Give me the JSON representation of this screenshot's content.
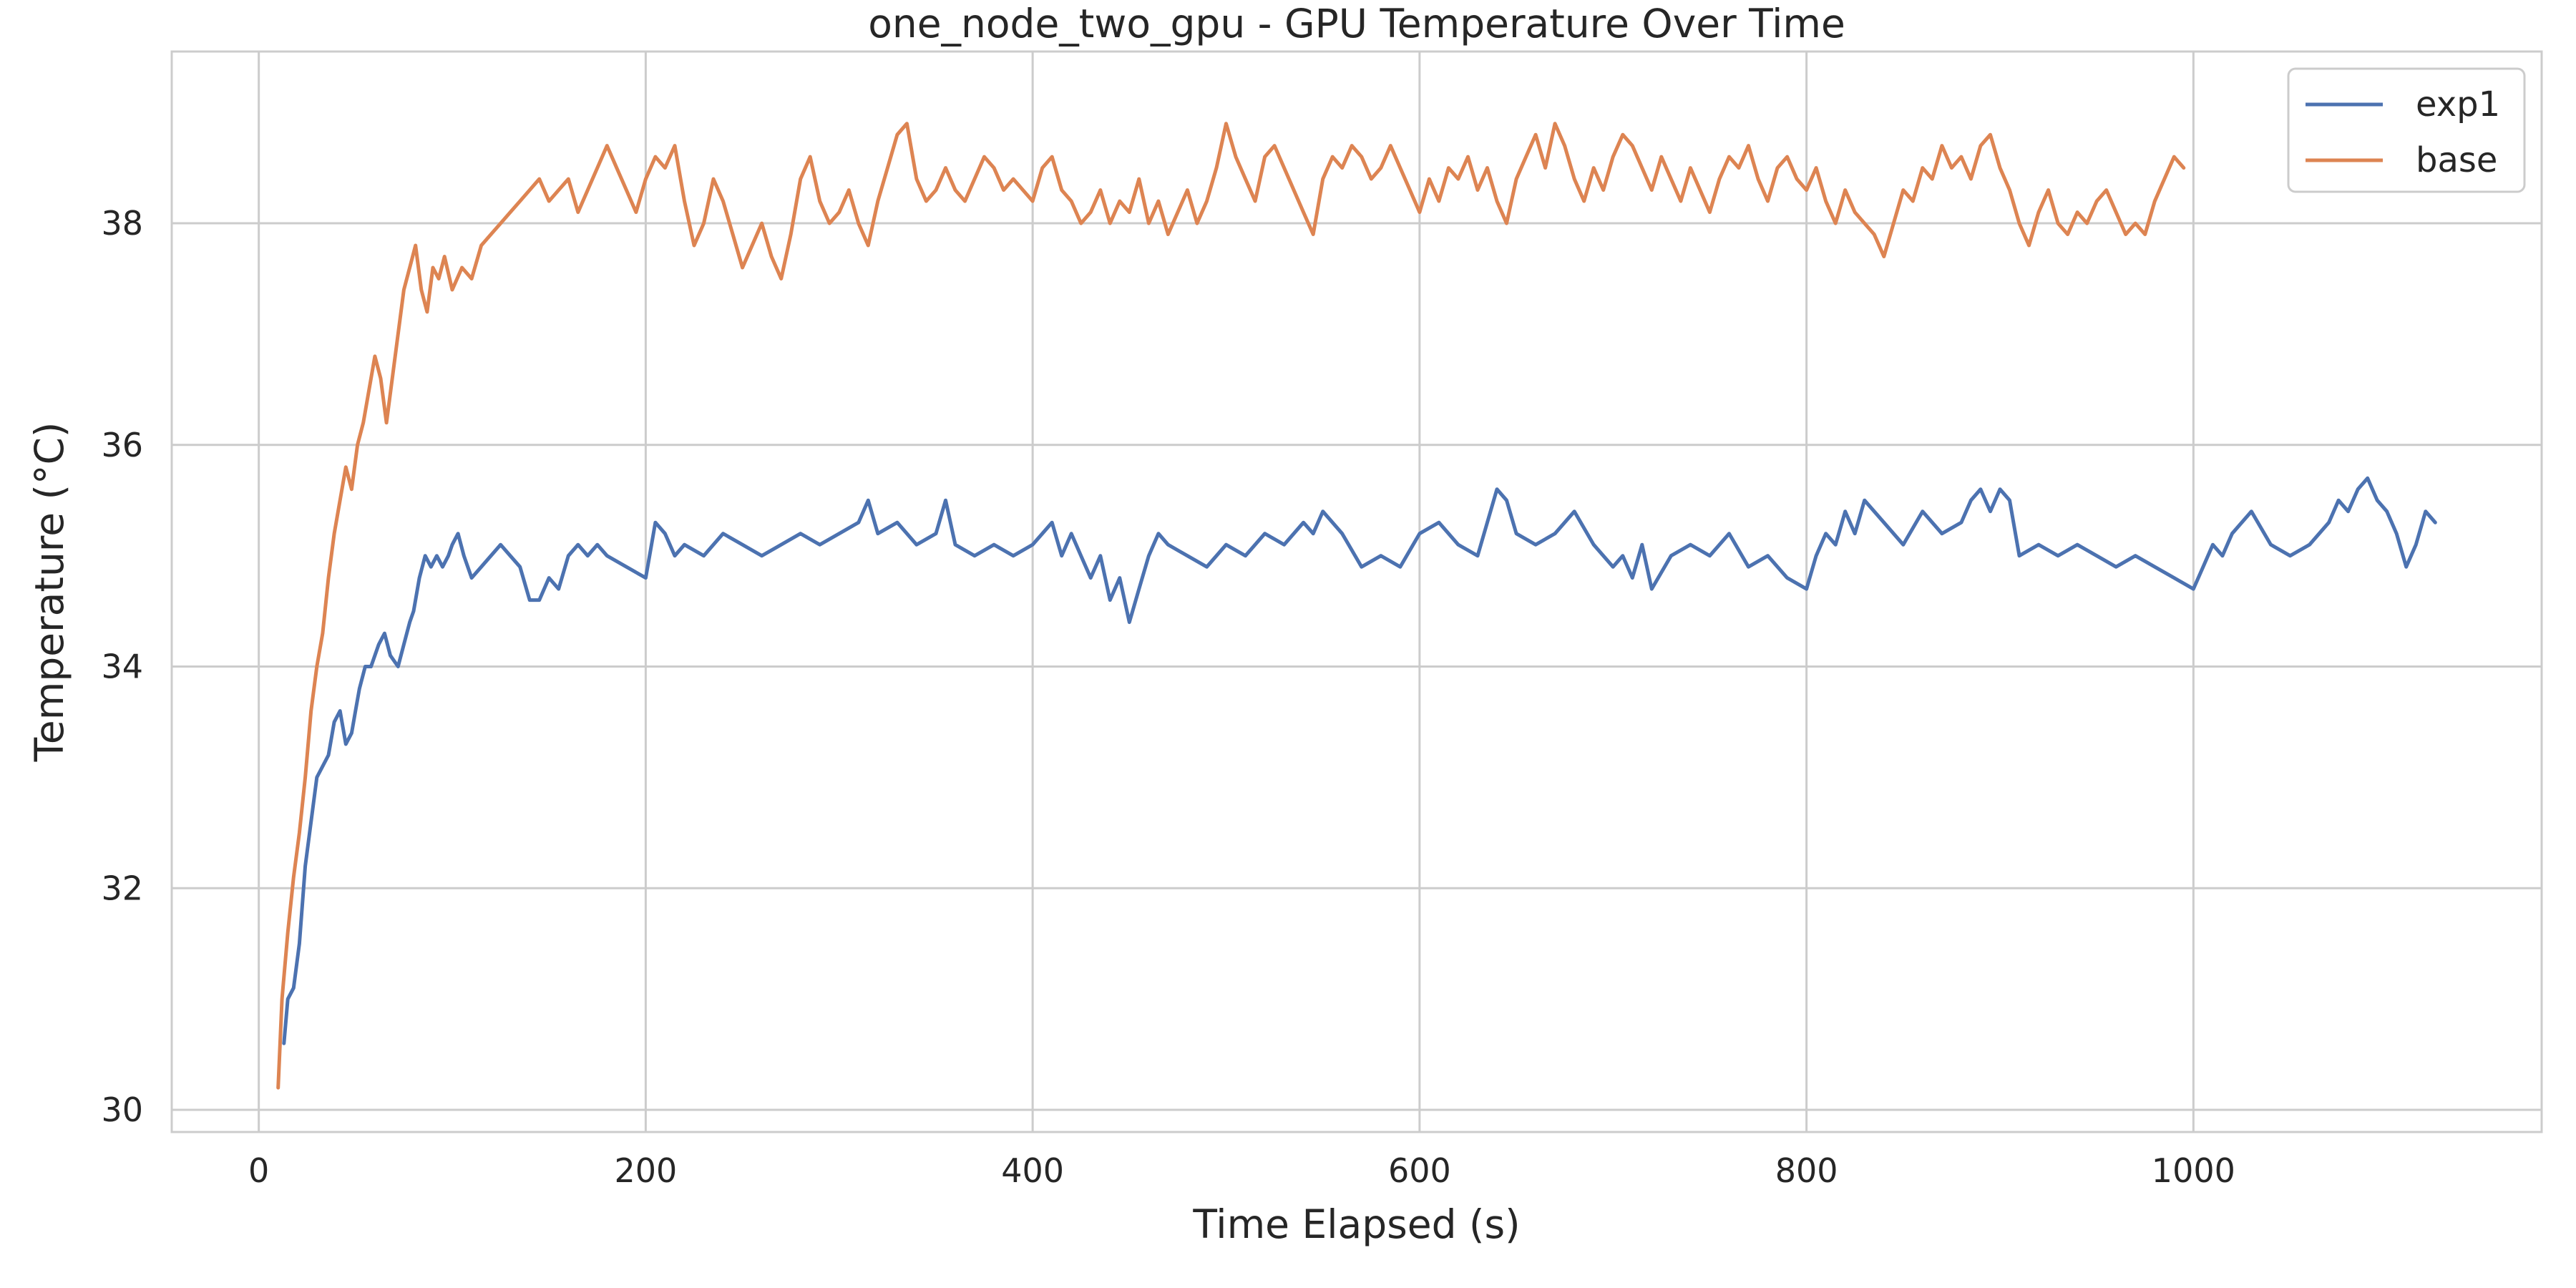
{
  "chart_data": {
    "type": "line",
    "title": "one_node_two_gpu - GPU Temperature Over Time",
    "xlabel": "Time Elapsed (s)",
    "ylabel": "Temperature (°C)",
    "xlim": [
      -45,
      1180
    ],
    "ylim": [
      29.8,
      39.55
    ],
    "xticks": [
      0,
      200,
      400,
      600,
      800,
      1000
    ],
    "yticks": [
      30,
      32,
      34,
      36,
      38
    ],
    "grid": true,
    "legend_position": "top-right",
    "series": [
      {
        "name": "exp1",
        "color": "#4c72b0",
        "x": [
          13,
          15,
          18,
          21,
          24,
          27,
          30,
          33,
          36,
          39,
          42,
          45,
          48,
          50,
          52,
          55,
          58,
          62,
          65,
          68,
          72,
          75,
          78,
          80,
          83,
          86,
          89,
          92,
          95,
          98,
          100,
          103,
          106,
          110,
          115,
          120,
          125,
          130,
          135,
          140,
          145,
          150,
          155,
          160,
          165,
          170,
          175,
          180,
          190,
          200,
          205,
          210,
          215,
          220,
          230,
          240,
          250,
          260,
          270,
          280,
          290,
          300,
          310,
          315,
          320,
          330,
          340,
          350,
          355,
          360,
          370,
          380,
          390,
          400,
          405,
          410,
          415,
          420,
          425,
          430,
          435,
          440,
          445,
          450,
          455,
          460,
          465,
          470,
          480,
          490,
          500,
          510,
          520,
          530,
          540,
          545,
          550,
          560,
          570,
          580,
          590,
          600,
          610,
          620,
          630,
          635,
          640,
          645,
          650,
          660,
          670,
          680,
          690,
          700,
          705,
          710,
          715,
          720,
          730,
          740,
          750,
          760,
          770,
          780,
          790,
          800,
          805,
          810,
          815,
          820,
          825,
          830,
          840,
          850,
          860,
          870,
          880,
          885,
          890,
          895,
          900,
          905,
          910,
          920,
          930,
          940,
          950,
          960,
          970,
          980,
          990,
          1000,
          1005,
          1010,
          1015,
          1020,
          1030,
          1040,
          1050,
          1060,
          1070,
          1075,
          1080,
          1085,
          1090,
          1095,
          1100,
          1105,
          1110,
          1115,
          1120,
          1125
        ],
        "values": [
          30.6,
          31.0,
          31.1,
          31.5,
          32.2,
          32.6,
          33.0,
          33.1,
          33.2,
          33.5,
          33.6,
          33.3,
          33.4,
          33.6,
          33.8,
          34.0,
          34.0,
          34.2,
          34.3,
          34.1,
          34.0,
          34.2,
          34.4,
          34.5,
          34.8,
          35.0,
          34.9,
          35.0,
          34.9,
          35.0,
          35.1,
          35.2,
          35.0,
          34.8,
          34.9,
          35.0,
          35.1,
          35.0,
          34.9,
          34.6,
          34.6,
          34.8,
          34.7,
          35.0,
          35.1,
          35.0,
          35.1,
          35.0,
          34.9,
          34.8,
          35.3,
          35.2,
          35.0,
          35.1,
          35.0,
          35.2,
          35.1,
          35.0,
          35.1,
          35.2,
          35.1,
          35.2,
          35.3,
          35.5,
          35.2,
          35.3,
          35.1,
          35.2,
          35.5,
          35.1,
          35.0,
          35.1,
          35.0,
          35.1,
          35.2,
          35.3,
          35.0,
          35.2,
          35.0,
          34.8,
          35.0,
          34.6,
          34.8,
          34.4,
          34.7,
          35.0,
          35.2,
          35.1,
          35.0,
          34.9,
          35.1,
          35.0,
          35.2,
          35.1,
          35.3,
          35.2,
          35.4,
          35.2,
          34.9,
          35.0,
          34.9,
          35.2,
          35.3,
          35.1,
          35.0,
          35.3,
          35.6,
          35.5,
          35.2,
          35.1,
          35.2,
          35.4,
          35.1,
          34.9,
          35.0,
          34.8,
          35.1,
          34.7,
          35.0,
          35.1,
          35.0,
          35.2,
          34.9,
          35.0,
          34.8,
          34.7,
          35.0,
          35.2,
          35.1,
          35.4,
          35.2,
          35.5,
          35.3,
          35.1,
          35.4,
          35.2,
          35.3,
          35.5,
          35.6,
          35.4,
          35.6,
          35.5,
          35.0,
          35.1,
          35.0,
          35.1,
          35.0,
          34.9,
          35.0,
          34.9,
          34.8,
          34.7,
          34.9,
          35.1,
          35.0,
          35.2,
          35.4,
          35.1,
          35.0,
          35.1,
          35.3,
          35.5,
          35.4,
          35.6,
          35.7,
          35.5,
          35.4,
          35.2,
          34.9,
          35.1,
          35.4,
          35.3
        ],
        "label": "exp1"
      },
      {
        "name": "base",
        "color": "#dd8452",
        "x": [
          10,
          12,
          15,
          18,
          21,
          24,
          27,
          30,
          33,
          36,
          39,
          42,
          45,
          48,
          51,
          54,
          57,
          60,
          63,
          66,
          69,
          72,
          75,
          78,
          81,
          84,
          87,
          90,
          93,
          96,
          100,
          105,
          110,
          115,
          120,
          125,
          130,
          135,
          140,
          145,
          150,
          155,
          160,
          165,
          170,
          175,
          180,
          185,
          190,
          195,
          200,
          205,
          210,
          215,
          220,
          225,
          230,
          235,
          240,
          245,
          250,
          255,
          260,
          265,
          270,
          275,
          280,
          285,
          290,
          295,
          300,
          305,
          310,
          315,
          320,
          325,
          330,
          335,
          340,
          345,
          350,
          355,
          360,
          365,
          370,
          375,
          380,
          385,
          390,
          395,
          400,
          405,
          410,
          415,
          420,
          425,
          430,
          435,
          440,
          445,
          450,
          455,
          460,
          465,
          470,
          475,
          480,
          485,
          490,
          495,
          500,
          505,
          510,
          515,
          520,
          525,
          530,
          535,
          540,
          545,
          550,
          555,
          560,
          565,
          570,
          575,
          580,
          585,
          590,
          595,
          600,
          605,
          610,
          615,
          620,
          625,
          630,
          635,
          640,
          645,
          650,
          655,
          660,
          665,
          670,
          675,
          680,
          685,
          690,
          695,
          700,
          705,
          710,
          715,
          720,
          725,
          730,
          735,
          740,
          745,
          750,
          755,
          760,
          765,
          770,
          775,
          780,
          785,
          790,
          795,
          800,
          805,
          810,
          815,
          820,
          825,
          830,
          835,
          840,
          845,
          850,
          855,
          860,
          865,
          870,
          875,
          880,
          885,
          890,
          895,
          900,
          905,
          910,
          915,
          920,
          925,
          930,
          935,
          940,
          945,
          950,
          955,
          960,
          965,
          970,
          975,
          980,
          985,
          990,
          995
        ],
        "values": [
          30.2,
          31.0,
          31.6,
          32.1,
          32.5,
          33.0,
          33.6,
          34.0,
          34.3,
          34.8,
          35.2,
          35.5,
          35.8,
          35.6,
          36.0,
          36.2,
          36.5,
          36.8,
          36.6,
          36.2,
          36.6,
          37.0,
          37.4,
          37.6,
          37.8,
          37.4,
          37.2,
          37.6,
          37.5,
          37.7,
          37.4,
          37.6,
          37.5,
          37.8,
          37.9,
          38.0,
          38.1,
          38.2,
          38.3,
          38.4,
          38.2,
          38.3,
          38.4,
          38.1,
          38.3,
          38.5,
          38.7,
          38.5,
          38.3,
          38.1,
          38.4,
          38.6,
          38.5,
          38.7,
          38.2,
          37.8,
          38.0,
          38.4,
          38.2,
          37.9,
          37.6,
          37.8,
          38.0,
          37.7,
          37.5,
          37.9,
          38.4,
          38.6,
          38.2,
          38.0,
          38.1,
          38.3,
          38.0,
          37.8,
          38.2,
          38.5,
          38.8,
          38.9,
          38.4,
          38.2,
          38.3,
          38.5,
          38.3,
          38.2,
          38.4,
          38.6,
          38.5,
          38.3,
          38.4,
          38.3,
          38.2,
          38.5,
          38.6,
          38.3,
          38.2,
          38.0,
          38.1,
          38.3,
          38.0,
          38.2,
          38.1,
          38.4,
          38.0,
          38.2,
          37.9,
          38.1,
          38.3,
          38.0,
          38.2,
          38.5,
          38.9,
          38.6,
          38.4,
          38.2,
          38.6,
          38.7,
          38.5,
          38.3,
          38.1,
          37.9,
          38.4,
          38.6,
          38.5,
          38.7,
          38.6,
          38.4,
          38.5,
          38.7,
          38.5,
          38.3,
          38.1,
          38.4,
          38.2,
          38.5,
          38.4,
          38.6,
          38.3,
          38.5,
          38.2,
          38.0,
          38.4,
          38.6,
          38.8,
          38.5,
          38.9,
          38.7,
          38.4,
          38.2,
          38.5,
          38.3,
          38.6,
          38.8,
          38.7,
          38.5,
          38.3,
          38.6,
          38.4,
          38.2,
          38.5,
          38.3,
          38.1,
          38.4,
          38.6,
          38.5,
          38.7,
          38.4,
          38.2,
          38.5,
          38.6,
          38.4,
          38.3,
          38.5,
          38.2,
          38.0,
          38.3,
          38.1,
          38.0,
          37.9,
          37.7,
          38.0,
          38.3,
          38.2,
          38.5,
          38.4,
          38.7,
          38.5,
          38.6,
          38.4,
          38.7,
          38.8,
          38.5,
          38.3,
          38.0,
          37.8,
          38.1,
          38.3,
          38.0,
          37.9,
          38.1,
          38.0,
          38.2,
          38.3,
          38.1,
          37.9,
          38.0,
          37.9,
          38.2,
          38.4,
          38.6,
          38.5
        ],
        "label": "base"
      }
    ]
  }
}
